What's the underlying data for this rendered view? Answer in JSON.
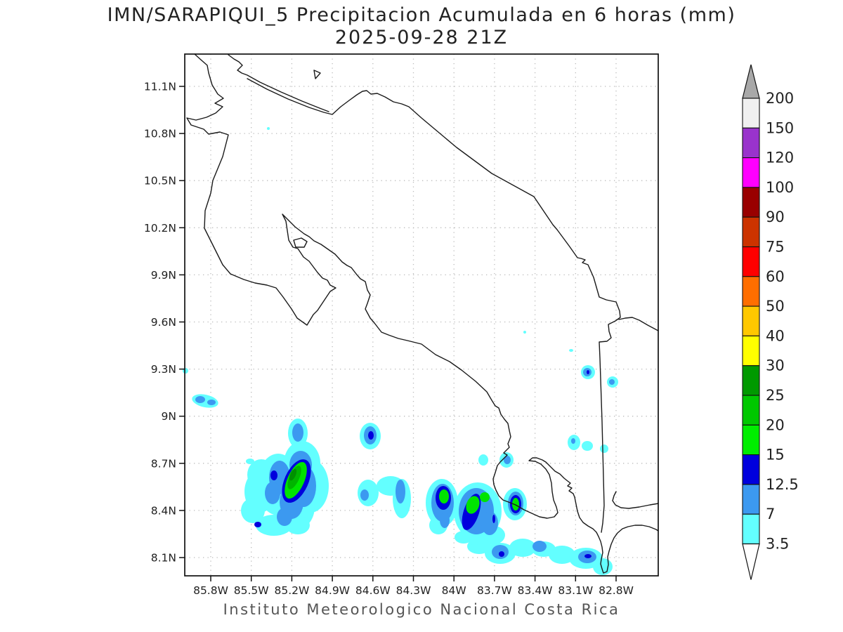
{
  "title": {
    "line1": "IMN/SARAPIQUI_5 Precipitacion Acumulada en 6 horas (mm)",
    "line2": "2025-09-28 21Z"
  },
  "footer": "Instituto Meteorologico Nacional Costa Rica",
  "axes": {
    "lat_labels": [
      "11.1N",
      "10.8N",
      "10.5N",
      "10.2N",
      "9.9N",
      "9.6N",
      "9.3N",
      "9N",
      "8.7N",
      "8.4N",
      "8.1N"
    ],
    "lon_labels": [
      "85.8W",
      "85.5W",
      "85.2W",
      "84.9W",
      "84.6W",
      "84.3W",
      "84W",
      "83.7W",
      "83.4W",
      "83.1W",
      "82.8W"
    ]
  },
  "colorbar": {
    "boundary_labels": [
      "200",
      "150",
      "120",
      "100",
      "90",
      "75",
      "60",
      "50",
      "40",
      "30",
      "25",
      "20",
      "15",
      "12.5",
      "7",
      "3.5"
    ],
    "segment_colors": [
      "#f0f0f0",
      "#9933cc",
      "#ff00ff",
      "#990000",
      "#cc3300",
      "#ff0000",
      "#ff6e00",
      "#ffc800",
      "#ffff00",
      "#009900",
      "#00c800",
      "#00ee00",
      "#0000dd",
      "#3c99f0",
      "#63ffff"
    ],
    "above_color": "#a8a8a8",
    "below_color": "#ffffff"
  },
  "map": {
    "grid_color": "#bbbbbb",
    "coast_color": "#1a1a1a",
    "coast_paths": [
      "M277,77 L287,86 L295,93 L297,104 L302,121 L310,134 L318,140 L306,147 L317,152 L307,161 L294,167 L279,171 L266,168 L272,178 L290,184 L297,191 L313,188 L325,192 L317,223 L303,257 L300,275 L292,300 L291,325 L300,343 L317,377 L328,390 L347,398 L363,403 L380,406 L393,410 L403,423 L415,440 L423,453 L437,463 L446,448 L452,442 L460,430 L470,415 L478,410 L470,406 L466,399 L459,396 L452,388 L446,380 L440,372 L432,366 L424,354 L417,352 L411,342 L407,315 L402,305 L408,311 L420,323 L433,333 L440,337 L447,343 L457,348 L467,355 L477,362 L487,373 L494,378 L500,381 L507,390 L513,397 L520,401 L523,413 L527,420 L523,432 L520,440 L527,453 L533,460 L543,473 L553,477 L567,482 L580,485 L600,490 L620,505 L640,515 L657,527 L677,543 L693,558 L700,570 L705,578 L710,581 L713,590 L718,597 L723,603 L725,613 L727,622 L723,632 L725,637 L717,645 L722,648 L712,658 L708,663 L705,673 L702,682 L703,690 L706,698 L710,706 L716,712 L724,715 L734,719 L746,726 L757,731 L768,736 L779,738 L789,736 L794,730 L792,722 L788,712 L786,700 L785,688 L782,676 L777,668 L770,661 L762,657 L753,656 L758,652 L764,652 L772,655 L777,658 L781,662 L790,671 L797,675 L803,681 L808,685 L812,688 L808,692 L814,695 L810,699 L816,703 L818,708 L820,718 L822,728 L825,737 L830,744 L837,749 L844,753 L849,758 L852,764 L855,771 L857,779 L858,787 L856,796 L855,803 L857,810 L859,816 L864,814 L866,804 L865,793 L867,785 L870,775 L874,766 L879,759 L886,753 L894,750 L904,748 L914,748 L924,750 L934,754 L937,756",
      "M325,78 L333,84 L340,88 L345,93 L338,100 L344,104 L352,107 L370,117 L400,131 L430,144 L455,154 L468,159",
      "M352,112 L380,127 L410,141 L440,153 L461,160 L473,163 L485,152 L497,143 L508,135 L516,130 L522,129 L528,134 L537,133 L548,138 L560,145 L572,148 L582,152 L600,168 L650,210 L700,247 L760,280 L787,320 L793,327 L810,350 L822,367 L827,368 L833,370 L829,374 L837,377 L845,395 L853,423 L863,427 L877,430 L882,443 L883,452 L876,457 L866,462 L867,472 L870,481 L864,486 L853,487 L854,510 L855,540 L856,570 L857,600 L858,640 L859,680 L860,720 L858,745 L856,758",
      "M881,455 L890,453 L900,452 L910,456 L922,463 L937,471",
      "M877,700 L874,706 L872,713 L876,719 L884,723 L895,724 L910,722 L925,719 L937,717",
      "M418,342 L429,339 L437,344 L433,352 L421,352 Z",
      "M447,100 L456,104 L449,112 Z"
    ],
    "precip_levels": {
      "c": "#63ffff",
      "b": "#3c99f0",
      "db": "#0000dd",
      "g1": "#00e400",
      "g2": "#00b400",
      "g3": "#009000"
    },
    "precip_blobs": [
      [
        "c",
        264,
        528,
        4,
        4,
        0
      ],
      [
        "c",
        292,
        571,
        19,
        9,
        12
      ],
      [
        "c",
        382,
        183,
        2,
        2,
        0
      ],
      [
        "c",
        424,
        617,
        14,
        21,
        0
      ],
      [
        "c",
        430,
        660,
        26,
        32,
        0
      ],
      [
        "c",
        442,
        692,
        26,
        38,
        0
      ],
      [
        "c",
        420,
        722,
        28,
        33,
        0
      ],
      [
        "c",
        396,
        690,
        30,
        44,
        0
      ],
      [
        "c",
        370,
        700,
        22,
        30,
        0
      ],
      [
        "c",
        360,
        727,
        17,
        18,
        0
      ],
      [
        "c",
        390,
        748,
        26,
        15,
        0
      ],
      [
        "c",
        424,
        748,
        17,
        13,
        0
      ],
      [
        "c",
        372,
        676,
        20,
        22,
        0
      ],
      [
        "c",
        356,
        657,
        6,
        4,
        0
      ],
      [
        "c",
        527,
        621,
        15,
        19,
        0
      ],
      [
        "c",
        524,
        702,
        15,
        19,
        0
      ],
      [
        "c",
        556,
        692,
        20,
        14,
        0
      ],
      [
        "c",
        572,
        710,
        13,
        28,
        0
      ],
      [
        "c",
        629,
        716,
        23,
        34,
        0
      ],
      [
        "c",
        624,
        748,
        13,
        13,
        0
      ],
      [
        "c",
        680,
        728,
        34,
        41,
        0
      ],
      [
        "c",
        700,
        762,
        19,
        14,
        0
      ],
      [
        "c",
        688,
        655,
        7,
        8,
        0
      ],
      [
        "c",
        721,
        655,
        10,
        11,
        0
      ],
      [
        "c",
        733,
        718,
        17,
        23,
        0
      ],
      [
        "c",
        660,
        765,
        13,
        9,
        0
      ],
      [
        "c",
        682,
        778,
        17,
        11,
        0
      ],
      [
        "c",
        712,
        788,
        22,
        15,
        0
      ],
      [
        "c",
        744,
        780,
        19,
        13,
        0
      ],
      [
        "c",
        774,
        782,
        17,
        11,
        0
      ],
      [
        "c",
        800,
        790,
        19,
        13,
        0
      ],
      [
        "c",
        834,
        795,
        24,
        15,
        0
      ],
      [
        "c",
        858,
        807,
        14,
        12,
        0
      ],
      [
        "c",
        676,
        770,
        9,
        6,
        0
      ],
      [
        "c",
        817,
        630,
        9,
        11,
        0
      ],
      [
        "c",
        836,
        635,
        8,
        7,
        0
      ],
      [
        "c",
        860,
        639,
        6,
        6,
        0
      ],
      [
        "c",
        837,
        530,
        10,
        10,
        0
      ],
      [
        "c",
        872,
        544,
        8,
        8,
        0
      ],
      [
        "c",
        747,
        473,
        2,
        2,
        0
      ],
      [
        "c",
        813,
        499,
        3,
        2,
        0
      ],
      [
        "b",
        285,
        569,
        7,
        5,
        0
      ],
      [
        "b",
        301,
        573,
        6,
        4,
        0
      ],
      [
        "b",
        424,
        616,
        8,
        13,
        0
      ],
      [
        "b",
        428,
        662,
        16,
        20,
        0
      ],
      [
        "b",
        432,
        692,
        18,
        30,
        0
      ],
      [
        "b",
        415,
        715,
        17,
        24,
        0
      ],
      [
        "b",
        398,
        680,
        15,
        24,
        0
      ],
      [
        "b",
        405,
        736,
        11,
        13,
        0
      ],
      [
        "b",
        388,
        702,
        11,
        16,
        0
      ],
      [
        "b",
        527,
        620,
        9,
        13,
        0
      ],
      [
        "b",
        519,
        705,
        6,
        8,
        0
      ],
      [
        "b",
        570,
        700,
        7,
        17,
        0
      ],
      [
        "b",
        630,
        716,
        16,
        27,
        0
      ],
      [
        "b",
        633,
        741,
        7,
        11,
        0
      ],
      [
        "b",
        678,
        728,
        25,
        33,
        0
      ],
      [
        "b",
        697,
        745,
        12,
        17,
        0
      ],
      [
        "b",
        734,
        717,
        11,
        17,
        0
      ],
      [
        "b",
        712,
        786,
        12,
        10,
        0
      ],
      [
        "b",
        768,
        778,
        10,
        8,
        0
      ],
      [
        "b",
        836,
        793,
        13,
        9,
        0
      ],
      [
        "b",
        722,
        655,
        5,
        6,
        0
      ],
      [
        "b",
        816,
        628,
        3,
        4,
        0
      ],
      [
        "b",
        836,
        530,
        6,
        6,
        0
      ],
      [
        "b",
        871,
        544,
        4,
        4,
        0
      ],
      [
        "db",
        422,
        685,
        17,
        33,
        24
      ],
      [
        "db",
        390,
        677,
        5,
        7,
        0
      ],
      [
        "db",
        367,
        747,
        5,
        4,
        0
      ],
      [
        "db",
        528,
        620,
        4,
        6,
        0
      ],
      [
        "db",
        631,
        709,
        11,
        17,
        0
      ],
      [
        "db",
        671,
        729,
        11,
        27,
        18
      ],
      [
        "db",
        703,
        739,
        2,
        6,
        0
      ],
      [
        "db",
        734,
        718,
        8,
        13,
        0
      ],
      [
        "db",
        714,
        789,
        4,
        4,
        0
      ],
      [
        "db",
        837,
        792,
        5,
        3,
        0
      ],
      [
        "db",
        837,
        530,
        2,
        3,
        0
      ],
      [
        "g1",
        421,
        684,
        12,
        28,
        24
      ],
      [
        "g1",
        632,
        707,
        7,
        10,
        0
      ],
      [
        "g1",
        673,
        719,
        9,
        13,
        20
      ],
      [
        "g1",
        690,
        708,
        7,
        7,
        0
      ],
      [
        "g1",
        734,
        718,
        5,
        9,
        0
      ],
      [
        "g2",
        419,
        680,
        7,
        18,
        24
      ],
      [
        "g3",
        417,
        676,
        4,
        9,
        24
      ]
    ]
  }
}
